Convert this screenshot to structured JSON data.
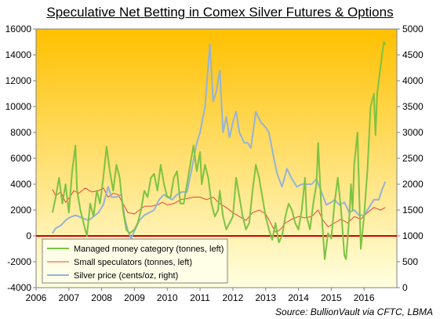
{
  "chart_data": {
    "type": "line",
    "title": "Speculative Net Betting in Comex Silver Futures & Options",
    "source_label": "Source:",
    "source_text": "BullionVault via CFTC, LBMA",
    "left_axis": {
      "ylim": [
        -4000,
        16000
      ],
      "ticks": [
        "-4000",
        "-2000",
        "0",
        "2000",
        "4000",
        "6000",
        "8000",
        "10000",
        "12000",
        "14000",
        "16000"
      ]
    },
    "right_axis": {
      "ylim": [
        0,
        5000
      ],
      "ticks": [
        "0",
        "500",
        "1000",
        "1500",
        "2000",
        "2500",
        "3000",
        "3500",
        "4000",
        "4500",
        "5000"
      ]
    },
    "x_axis": {
      "xlim": [
        2006,
        2017
      ],
      "ticks": [
        "2006",
        "2007",
        "2008",
        "2009",
        "2010",
        "2011",
        "2012",
        "2013",
        "2014",
        "2015",
        "2016"
      ]
    },
    "grid": false,
    "legend_position": "bottom-left",
    "colors": {
      "background_top": "#FFC000",
      "background_bottom": "#FFFFE0",
      "zero_line": "#D00000"
    },
    "series": [
      {
        "name": "Managed money category (tonnes, left)",
        "axis": "left",
        "color": "#7DC242",
        "points": [
          [
            2006.5,
            1800
          ],
          [
            2006.6,
            3000
          ],
          [
            2006.7,
            4500
          ],
          [
            2006.8,
            2500
          ],
          [
            2006.9,
            4000
          ],
          [
            2007.0,
            1800
          ],
          [
            2007.1,
            5000
          ],
          [
            2007.2,
            7000
          ],
          [
            2007.25,
            3500
          ],
          [
            2007.35,
            2000
          ],
          [
            2007.45,
            1000
          ],
          [
            2007.55,
            0
          ],
          [
            2007.65,
            2500
          ],
          [
            2007.75,
            1500
          ],
          [
            2007.85,
            3500
          ],
          [
            2007.95,
            2500
          ],
          [
            2008.05,
            4500
          ],
          [
            2008.15,
            6900
          ],
          [
            2008.25,
            5000
          ],
          [
            2008.35,
            3500
          ],
          [
            2008.45,
            5500
          ],
          [
            2008.55,
            4500
          ],
          [
            2008.65,
            2000
          ],
          [
            2008.75,
            500
          ],
          [
            2008.85,
            200
          ],
          [
            2009.0,
            500
          ],
          [
            2009.1,
            1000
          ],
          [
            2009.2,
            2000
          ],
          [
            2009.3,
            3500
          ],
          [
            2009.4,
            3000
          ],
          [
            2009.5,
            4500
          ],
          [
            2009.6,
            4800
          ],
          [
            2009.7,
            3500
          ],
          [
            2009.8,
            5500
          ],
          [
            2009.9,
            4000
          ],
          [
            2010.0,
            3000
          ],
          [
            2010.1,
            3000
          ],
          [
            2010.2,
            4500
          ],
          [
            2010.3,
            5000
          ],
          [
            2010.4,
            2500
          ],
          [
            2010.5,
            2500
          ],
          [
            2010.6,
            4000
          ],
          [
            2010.7,
            5500
          ],
          [
            2010.8,
            7000
          ],
          [
            2010.9,
            5000
          ],
          [
            2011.0,
            6500
          ],
          [
            2011.05,
            4000
          ],
          [
            2011.15,
            5500
          ],
          [
            2011.25,
            4500
          ],
          [
            2011.35,
            2500
          ],
          [
            2011.45,
            1500
          ],
          [
            2011.55,
            2000
          ],
          [
            2011.6,
            3500
          ],
          [
            2011.7,
            1500
          ],
          [
            2011.8,
            500
          ],
          [
            2011.9,
            1000
          ],
          [
            2012.0,
            1500
          ],
          [
            2012.1,
            4500
          ],
          [
            2012.2,
            3000
          ],
          [
            2012.3,
            1500
          ],
          [
            2012.4,
            500
          ],
          [
            2012.5,
            1000
          ],
          [
            2012.6,
            3500
          ],
          [
            2012.7,
            5500
          ],
          [
            2012.8,
            4500
          ],
          [
            2012.9,
            3000
          ],
          [
            2013.0,
            1500
          ],
          [
            2013.1,
            500
          ],
          [
            2013.2,
            -300
          ],
          [
            2013.3,
            1000
          ],
          [
            2013.4,
            -500
          ],
          [
            2013.5,
            0
          ],
          [
            2013.6,
            1500
          ],
          [
            2013.7,
            2500
          ],
          [
            2013.8,
            2000
          ],
          [
            2013.9,
            1000
          ],
          [
            2014.0,
            500
          ],
          [
            2014.1,
            2000
          ],
          [
            2014.2,
            4500
          ],
          [
            2014.25,
            1500
          ],
          [
            2014.35,
            500
          ],
          [
            2014.45,
            2500
          ],
          [
            2014.55,
            4000
          ],
          [
            2014.6,
            7200
          ],
          [
            2014.7,
            2000
          ],
          [
            2014.8,
            -1800
          ],
          [
            2014.9,
            200
          ],
          [
            2015.0,
            -200
          ],
          [
            2015.1,
            2500
          ],
          [
            2015.2,
            4500
          ],
          [
            2015.3,
            2000
          ],
          [
            2015.4,
            -1500
          ],
          [
            2015.45,
            -1800
          ],
          [
            2015.55,
            1500
          ],
          [
            2015.6,
            4000
          ],
          [
            2015.65,
            2000
          ],
          [
            2015.7,
            5500
          ],
          [
            2015.8,
            8000
          ],
          [
            2015.85,
            3500
          ],
          [
            2015.9,
            -1000
          ],
          [
            2016.0,
            1500
          ],
          [
            2016.1,
            5000
          ],
          [
            2016.2,
            10000
          ],
          [
            2016.3,
            11000
          ],
          [
            2016.35,
            7800
          ],
          [
            2016.4,
            11000
          ],
          [
            2016.45,
            12000
          ],
          [
            2016.55,
            14000
          ],
          [
            2016.6,
            15000
          ],
          [
            2016.65,
            14800
          ]
        ]
      },
      {
        "name": "Small speculators (tonnes, left)",
        "axis": "left",
        "color": "#E8453C",
        "points": [
          [
            2006.5,
            3600
          ],
          [
            2006.6,
            3100
          ],
          [
            2006.75,
            3400
          ],
          [
            2006.9,
            2600
          ],
          [
            2007.0,
            2900
          ],
          [
            2007.15,
            3500
          ],
          [
            2007.3,
            3300
          ],
          [
            2007.5,
            3700
          ],
          [
            2007.7,
            3400
          ],
          [
            2007.9,
            3500
          ],
          [
            2008.05,
            3700
          ],
          [
            2008.2,
            3000
          ],
          [
            2008.35,
            3300
          ],
          [
            2008.5,
            3200
          ],
          [
            2008.65,
            2500
          ],
          [
            2008.8,
            1800
          ],
          [
            2009.0,
            1700
          ],
          [
            2009.15,
            2000
          ],
          [
            2009.3,
            2300
          ],
          [
            2009.5,
            2300
          ],
          [
            2009.7,
            2400
          ],
          [
            2009.85,
            2600
          ],
          [
            2010.0,
            2400
          ],
          [
            2010.2,
            2500
          ],
          [
            2010.4,
            2800
          ],
          [
            2010.6,
            2900
          ],
          [
            2010.8,
            3000
          ],
          [
            2011.0,
            3000
          ],
          [
            2011.2,
            2800
          ],
          [
            2011.4,
            3000
          ],
          [
            2011.6,
            2500
          ],
          [
            2011.8,
            2200
          ],
          [
            2012.0,
            1800
          ],
          [
            2012.2,
            1500
          ],
          [
            2012.4,
            1200
          ],
          [
            2012.6,
            1800
          ],
          [
            2012.8,
            2000
          ],
          [
            2013.0,
            1700
          ],
          [
            2013.15,
            1000
          ],
          [
            2013.3,
            300
          ],
          [
            2013.45,
            500
          ],
          [
            2013.6,
            1000
          ],
          [
            2013.8,
            1300
          ],
          [
            2014.0,
            1500
          ],
          [
            2014.2,
            1400
          ],
          [
            2014.4,
            1500
          ],
          [
            2014.6,
            2000
          ],
          [
            2014.75,
            1200
          ],
          [
            2014.9,
            700
          ],
          [
            2015.1,
            1000
          ],
          [
            2015.3,
            1300
          ],
          [
            2015.5,
            1000
          ],
          [
            2015.7,
            1500
          ],
          [
            2015.9,
            1300
          ],
          [
            2016.1,
            1800
          ],
          [
            2016.3,
            2200
          ],
          [
            2016.5,
            2000
          ],
          [
            2016.65,
            2200
          ]
        ]
      },
      {
        "name": "Silver price (cents/oz, right)",
        "axis": "right",
        "color": "#95B3D7",
        "points": [
          [
            2006.5,
            1050
          ],
          [
            2006.6,
            1150
          ],
          [
            2006.75,
            1200
          ],
          [
            2006.9,
            1300
          ],
          [
            2007.0,
            1350
          ],
          [
            2007.2,
            1400
          ],
          [
            2007.4,
            1350
          ],
          [
            2007.6,
            1300
          ],
          [
            2007.8,
            1400
          ],
          [
            2007.9,
            1450
          ],
          [
            2008.05,
            1600
          ],
          [
            2008.2,
            1950
          ],
          [
            2008.3,
            1750
          ],
          [
            2008.45,
            1750
          ],
          [
            2008.6,
            1800
          ],
          [
            2008.7,
            1350
          ],
          [
            2008.8,
            1100
          ],
          [
            2008.9,
            950
          ],
          [
            2009.0,
            1100
          ],
          [
            2009.15,
            1300
          ],
          [
            2009.3,
            1400
          ],
          [
            2009.45,
            1450
          ],
          [
            2009.6,
            1500
          ],
          [
            2009.75,
            1700
          ],
          [
            2009.9,
            1800
          ],
          [
            2010.0,
            1750
          ],
          [
            2010.15,
            1700
          ],
          [
            2010.3,
            1800
          ],
          [
            2010.45,
            1850
          ],
          [
            2010.6,
            1850
          ],
          [
            2010.75,
            2300
          ],
          [
            2010.9,
            2800
          ],
          [
            2011.0,
            3000
          ],
          [
            2011.15,
            3500
          ],
          [
            2011.3,
            4700
          ],
          [
            2011.4,
            3600
          ],
          [
            2011.5,
            3800
          ],
          [
            2011.6,
            4200
          ],
          [
            2011.7,
            3000
          ],
          [
            2011.8,
            3300
          ],
          [
            2011.9,
            2900
          ],
          [
            2012.0,
            3200
          ],
          [
            2012.1,
            3400
          ],
          [
            2012.2,
            3000
          ],
          [
            2012.35,
            2800
          ],
          [
            2012.45,
            2800
          ],
          [
            2012.55,
            2700
          ],
          [
            2012.7,
            3400
          ],
          [
            2012.85,
            3200
          ],
          [
            2013.0,
            3100
          ],
          [
            2013.1,
            3000
          ],
          [
            2013.25,
            2500
          ],
          [
            2013.35,
            2200
          ],
          [
            2013.5,
            1950
          ],
          [
            2013.65,
            2300
          ],
          [
            2013.8,
            2100
          ],
          [
            2013.95,
            1950
          ],
          [
            2014.1,
            2000
          ],
          [
            2014.25,
            2000
          ],
          [
            2014.4,
            2000
          ],
          [
            2014.55,
            2100
          ],
          [
            2014.7,
            1850
          ],
          [
            2014.85,
            1600
          ],
          [
            2015.0,
            1650
          ],
          [
            2015.1,
            1700
          ],
          [
            2015.25,
            1600
          ],
          [
            2015.4,
            1650
          ],
          [
            2015.55,
            1450
          ],
          [
            2015.7,
            1500
          ],
          [
            2015.85,
            1400
          ],
          [
            2016.0,
            1400
          ],
          [
            2016.15,
            1550
          ],
          [
            2016.3,
            1700
          ],
          [
            2016.45,
            1700
          ],
          [
            2016.55,
            1900
          ],
          [
            2016.65,
            2050
          ]
        ]
      }
    ]
  }
}
